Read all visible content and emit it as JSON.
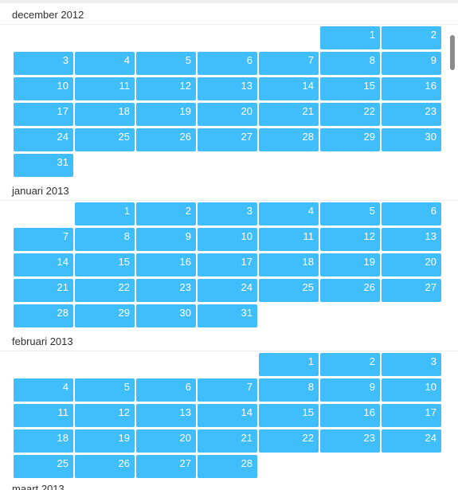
{
  "colors": {
    "day_cell": "#40bdfb",
    "day_text": "#ffffff",
    "header_text": "#2f2f2f"
  },
  "months": [
    {
      "title": "december 2012",
      "start_col": 5,
      "days": 31
    },
    {
      "title": "januari 2013",
      "start_col": 1,
      "days": 31
    },
    {
      "title": "februari 2013",
      "start_col": 4,
      "days": 28
    }
  ],
  "next_month_title": "maart 2013"
}
